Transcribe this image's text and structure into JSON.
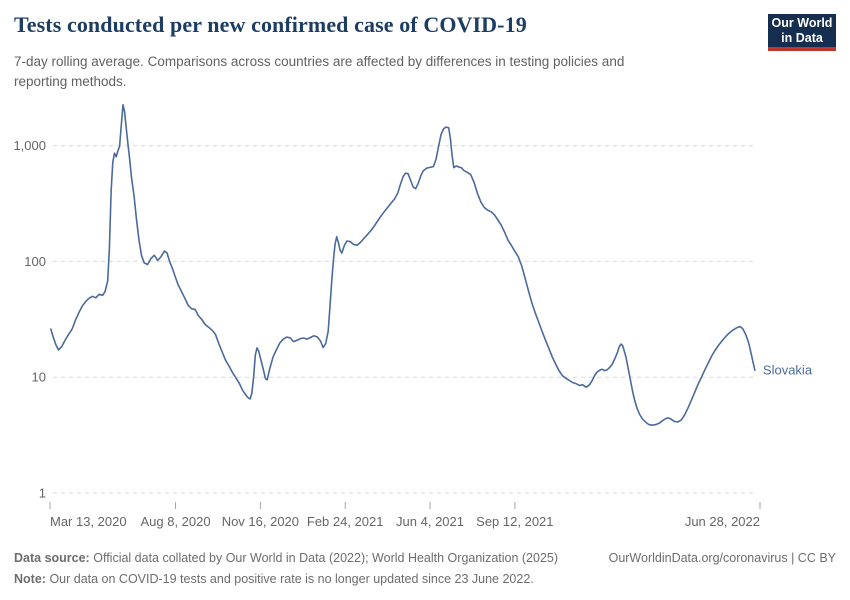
{
  "header": {
    "title": "Tests conducted per new confirmed case of COVID-19",
    "subtitle": "7-day rolling average. Comparisons across countries are affected by differences in testing policies and reporting methods.",
    "logo": {
      "line1": "Our World",
      "line2": "in Data"
    }
  },
  "footer": {
    "datasource_label": "Data source:",
    "datasource_text": "Official data collated by Our World in Data (2022); World Health Organization (2025)",
    "link": "OurWorldinData.org/coronavirus | CC BY",
    "note_label": "Note:",
    "note_text": "Our data on COVID-19 tests and positive rate is no longer updated since 23 June 2022."
  },
  "colors": {
    "title": "#1d3d63",
    "subtitle": "#616161",
    "grid": "#dadada",
    "axis_tick": "#a5a5a5",
    "axis_label": "#666666",
    "series_blue": "#4C6A9C",
    "logo_bg": "#152d4f",
    "logo_stripe": "#c0362c",
    "footer_text": "#6d6d6d"
  },
  "chart_data": {
    "type": "line",
    "title": "Tests conducted per new confirmed case of COVID-19",
    "subtitle": "7-day rolling average. Comparisons across countries are affected by differences in testing policies and reporting methods.",
    "log_scale_y": true,
    "grid": "dashed-horizontal",
    "ylim": [
      1,
      2500
    ],
    "x_range": [
      "2020-03-13",
      "2022-06-28"
    ],
    "y_ticks": [
      {
        "value": 1000,
        "label": "1,000"
      },
      {
        "value": 100,
        "label": "100"
      },
      {
        "value": 10,
        "label": "10"
      },
      {
        "value": 1,
        "label": "1"
      }
    ],
    "x_ticks": [
      {
        "date": "2020-03-13",
        "label": "Mar 13, 2020"
      },
      {
        "date": "2020-08-08",
        "label": "Aug 8, 2020"
      },
      {
        "date": "2020-11-16",
        "label": "Nov 16, 2020"
      },
      {
        "date": "2021-02-24",
        "label": "Feb 24, 2021"
      },
      {
        "date": "2021-06-04",
        "label": "Jun 4, 2021"
      },
      {
        "date": "2021-09-12",
        "label": "Sep 12, 2021"
      },
      {
        "date": "2022-06-28",
        "label": "Jun 28, 2022"
      }
    ],
    "series": [
      {
        "name": "Slovakia",
        "color": "#4C6A9C",
        "points": [
          [
            "2020-03-14",
            26
          ],
          [
            "2020-03-17",
            22
          ],
          [
            "2020-03-20",
            19
          ],
          [
            "2020-03-23",
            17.2
          ],
          [
            "2020-03-27",
            18.5
          ],
          [
            "2020-03-31",
            21
          ],
          [
            "2020-04-04",
            23.5
          ],
          [
            "2020-04-08",
            26
          ],
          [
            "2020-04-12",
            31
          ],
          [
            "2020-04-16",
            36
          ],
          [
            "2020-04-20",
            41
          ],
          [
            "2020-04-24",
            45
          ],
          [
            "2020-04-28",
            48
          ],
          [
            "2020-05-02",
            50
          ],
          [
            "2020-05-06",
            48.5
          ],
          [
            "2020-05-10",
            52
          ],
          [
            "2020-05-14",
            51
          ],
          [
            "2020-05-17",
            55
          ],
          [
            "2020-05-20",
            68
          ],
          [
            "2020-05-22",
            130
          ],
          [
            "2020-05-24",
            400
          ],
          [
            "2020-05-26",
            720
          ],
          [
            "2020-05-28",
            860
          ],
          [
            "2020-05-30",
            800
          ],
          [
            "2020-06-01",
            900
          ],
          [
            "2020-06-03",
            990
          ],
          [
            "2020-06-05",
            1500
          ],
          [
            "2020-06-07",
            2250
          ],
          [
            "2020-06-09",
            1950
          ],
          [
            "2020-06-11",
            1400
          ],
          [
            "2020-06-13",
            1020
          ],
          [
            "2020-06-15",
            760
          ],
          [
            "2020-06-17",
            540
          ],
          [
            "2020-06-20",
            370
          ],
          [
            "2020-06-23",
            230
          ],
          [
            "2020-06-26",
            150
          ],
          [
            "2020-06-29",
            112
          ],
          [
            "2020-07-02",
            97
          ],
          [
            "2020-07-06",
            94
          ],
          [
            "2020-07-10",
            106
          ],
          [
            "2020-07-14",
            113
          ],
          [
            "2020-07-18",
            102
          ],
          [
            "2020-07-22",
            110
          ],
          [
            "2020-07-26",
            123
          ],
          [
            "2020-07-29",
            118
          ],
          [
            "2020-08-01",
            100
          ],
          [
            "2020-08-04",
            88
          ],
          [
            "2020-08-07",
            76
          ],
          [
            "2020-08-11",
            63
          ],
          [
            "2020-08-15",
            55
          ],
          [
            "2020-08-19",
            48
          ],
          [
            "2020-08-23",
            41.5
          ],
          [
            "2020-08-27",
            39
          ],
          [
            "2020-08-31",
            38.5
          ],
          [
            "2020-09-04",
            34
          ],
          [
            "2020-09-08",
            31.5
          ],
          [
            "2020-09-12",
            28.5
          ],
          [
            "2020-09-16",
            27
          ],
          [
            "2020-09-20",
            25.5
          ],
          [
            "2020-09-24",
            23.5
          ],
          [
            "2020-09-28",
            19.5
          ],
          [
            "2020-10-02",
            16.5
          ],
          [
            "2020-10-06",
            14
          ],
          [
            "2020-10-10",
            12.5
          ],
          [
            "2020-10-14",
            11
          ],
          [
            "2020-10-18",
            9.9
          ],
          [
            "2020-10-22",
            8.9
          ],
          [
            "2020-10-26",
            7.7
          ],
          [
            "2020-10-30",
            7
          ],
          [
            "2020-11-02",
            6.6
          ],
          [
            "2020-11-04",
            6.5
          ],
          [
            "2020-11-06",
            7.3
          ],
          [
            "2020-11-08",
            10
          ],
          [
            "2020-11-10",
            15.5
          ],
          [
            "2020-11-12",
            17.9
          ],
          [
            "2020-11-14",
            16.8
          ],
          [
            "2020-11-17",
            13.8
          ],
          [
            "2020-11-20",
            11.2
          ],
          [
            "2020-11-22",
            9.7
          ],
          [
            "2020-11-24",
            9.5
          ],
          [
            "2020-11-27",
            11.8
          ],
          [
            "2020-12-01",
            15
          ],
          [
            "2020-12-05",
            17.3
          ],
          [
            "2020-12-09",
            19.8
          ],
          [
            "2020-12-13",
            21.3
          ],
          [
            "2020-12-17",
            22.2
          ],
          [
            "2020-12-21",
            21.9
          ],
          [
            "2020-12-25",
            20.3
          ],
          [
            "2020-12-29",
            20.8
          ],
          [
            "2021-01-02",
            21.5
          ],
          [
            "2021-01-06",
            21.8
          ],
          [
            "2021-01-10",
            21.3
          ],
          [
            "2021-01-14",
            22
          ],
          [
            "2021-01-18",
            22.8
          ],
          [
            "2021-01-22",
            22.3
          ],
          [
            "2021-01-26",
            20.5
          ],
          [
            "2021-01-29",
            18
          ],
          [
            "2021-02-01",
            19.5
          ],
          [
            "2021-02-04",
            25
          ],
          [
            "2021-02-06",
            40
          ],
          [
            "2021-02-08",
            65
          ],
          [
            "2021-02-10",
            100
          ],
          [
            "2021-02-12",
            140
          ],
          [
            "2021-02-14",
            163
          ],
          [
            "2021-02-16",
            145
          ],
          [
            "2021-02-18",
            125
          ],
          [
            "2021-02-20",
            118
          ],
          [
            "2021-02-23",
            137
          ],
          [
            "2021-02-26",
            150
          ],
          [
            "2021-03-02",
            148
          ],
          [
            "2021-03-06",
            140
          ],
          [
            "2021-03-10",
            138
          ],
          [
            "2021-03-14",
            146
          ],
          [
            "2021-03-18",
            158
          ],
          [
            "2021-03-22",
            170
          ],
          [
            "2021-03-26",
            183
          ],
          [
            "2021-03-30",
            200
          ],
          [
            "2021-04-03",
            222
          ],
          [
            "2021-04-07",
            245
          ],
          [
            "2021-04-11",
            268
          ],
          [
            "2021-04-15",
            292
          ],
          [
            "2021-04-19",
            318
          ],
          [
            "2021-04-23",
            345
          ],
          [
            "2021-04-27",
            390
          ],
          [
            "2021-04-30",
            460
          ],
          [
            "2021-05-03",
            535
          ],
          [
            "2021-05-06",
            578
          ],
          [
            "2021-05-09",
            572
          ],
          [
            "2021-05-12",
            505
          ],
          [
            "2021-05-15",
            440
          ],
          [
            "2021-05-18",
            424
          ],
          [
            "2021-05-21",
            470
          ],
          [
            "2021-05-24",
            545
          ],
          [
            "2021-05-27",
            605
          ],
          [
            "2021-05-31",
            638
          ],
          [
            "2021-06-04",
            648
          ],
          [
            "2021-06-08",
            658
          ],
          [
            "2021-06-11",
            760
          ],
          [
            "2021-06-14",
            980
          ],
          [
            "2021-06-17",
            1250
          ],
          [
            "2021-06-20",
            1400
          ],
          [
            "2021-06-23",
            1445
          ],
          [
            "2021-06-26",
            1425
          ],
          [
            "2021-06-28",
            1150
          ],
          [
            "2021-06-30",
            820
          ],
          [
            "2021-07-02",
            645
          ],
          [
            "2021-07-05",
            668
          ],
          [
            "2021-07-08",
            652
          ],
          [
            "2021-07-11",
            645
          ],
          [
            "2021-07-14",
            608
          ],
          [
            "2021-07-18",
            588
          ],
          [
            "2021-07-22",
            562
          ],
          [
            "2021-07-26",
            480
          ],
          [
            "2021-07-30",
            385
          ],
          [
            "2021-08-03",
            325
          ],
          [
            "2021-08-07",
            292
          ],
          [
            "2021-08-11",
            277
          ],
          [
            "2021-08-15",
            268
          ],
          [
            "2021-08-19",
            252
          ],
          [
            "2021-08-23",
            228
          ],
          [
            "2021-08-27",
            205
          ],
          [
            "2021-08-31",
            178
          ],
          [
            "2021-09-04",
            152
          ],
          [
            "2021-09-08",
            137
          ],
          [
            "2021-09-12",
            122
          ],
          [
            "2021-09-16",
            110
          ],
          [
            "2021-09-20",
            92
          ],
          [
            "2021-09-24",
            72
          ],
          [
            "2021-09-28",
            56
          ],
          [
            "2021-10-02",
            44
          ],
          [
            "2021-10-06",
            36
          ],
          [
            "2021-10-10",
            30
          ],
          [
            "2021-10-14",
            25
          ],
          [
            "2021-10-18",
            21
          ],
          [
            "2021-10-22",
            17.8
          ],
          [
            "2021-10-26",
            15
          ],
          [
            "2021-10-30",
            13
          ],
          [
            "2021-11-03",
            11.4
          ],
          [
            "2021-11-07",
            10.3
          ],
          [
            "2021-11-11",
            9.8
          ],
          [
            "2021-11-15",
            9.4
          ],
          [
            "2021-11-19",
            9
          ],
          [
            "2021-11-23",
            8.8
          ],
          [
            "2021-11-27",
            8.5
          ],
          [
            "2021-12-01",
            8.6
          ],
          [
            "2021-12-05",
            8.2
          ],
          [
            "2021-12-09",
            8.6
          ],
          [
            "2021-12-12",
            9.3
          ],
          [
            "2021-12-15",
            10.3
          ],
          [
            "2021-12-18",
            11.1
          ],
          [
            "2021-12-21",
            11.5
          ],
          [
            "2021-12-24",
            11.7
          ],
          [
            "2021-12-27",
            11.4
          ],
          [
            "2021-12-30",
            11.6
          ],
          [
            "2022-01-02",
            12.2
          ],
          [
            "2022-01-05",
            13
          ],
          [
            "2022-01-08",
            14.5
          ],
          [
            "2022-01-11",
            16.4
          ],
          [
            "2022-01-13",
            18.3
          ],
          [
            "2022-01-15",
            19.3
          ],
          [
            "2022-01-17",
            18.8
          ],
          [
            "2022-01-19",
            16.8
          ],
          [
            "2022-01-21",
            14.9
          ],
          [
            "2022-01-23",
            12.5
          ],
          [
            "2022-01-25",
            10.5
          ],
          [
            "2022-01-27",
            8.8
          ],
          [
            "2022-01-29",
            7.4
          ],
          [
            "2022-01-31",
            6.4
          ],
          [
            "2022-02-03",
            5.4
          ],
          [
            "2022-02-06",
            4.8
          ],
          [
            "2022-02-09",
            4.4
          ],
          [
            "2022-02-13",
            4.1
          ],
          [
            "2022-02-17",
            3.9
          ],
          [
            "2022-02-21",
            3.85
          ],
          [
            "2022-02-25",
            3.9
          ],
          [
            "2022-03-01",
            4
          ],
          [
            "2022-03-05",
            4.2
          ],
          [
            "2022-03-09",
            4.4
          ],
          [
            "2022-03-12",
            4.45
          ],
          [
            "2022-03-15",
            4.35
          ],
          [
            "2022-03-19",
            4.15
          ],
          [
            "2022-03-23",
            4.1
          ],
          [
            "2022-03-27",
            4.25
          ],
          [
            "2022-03-31",
            4.7
          ],
          [
            "2022-04-04",
            5.4
          ],
          [
            "2022-04-08",
            6.3
          ],
          [
            "2022-04-12",
            7.4
          ],
          [
            "2022-04-16",
            8.7
          ],
          [
            "2022-04-20",
            10
          ],
          [
            "2022-04-24",
            11.6
          ],
          [
            "2022-04-28",
            13.3
          ],
          [
            "2022-05-02",
            15.2
          ],
          [
            "2022-05-06",
            17
          ],
          [
            "2022-05-10",
            18.8
          ],
          [
            "2022-05-14",
            20.5
          ],
          [
            "2022-05-18",
            22.2
          ],
          [
            "2022-05-22",
            23.8
          ],
          [
            "2022-05-26",
            25.2
          ],
          [
            "2022-05-30",
            26.3
          ],
          [
            "2022-06-02",
            27
          ],
          [
            "2022-06-05",
            27.3
          ],
          [
            "2022-06-08",
            26
          ],
          [
            "2022-06-11",
            23.5
          ],
          [
            "2022-06-14",
            20.5
          ],
          [
            "2022-06-16",
            18
          ],
          [
            "2022-06-18",
            15.5
          ],
          [
            "2022-06-20",
            13.3
          ],
          [
            "2022-06-21",
            12.3
          ],
          [
            "2022-06-22",
            11.5
          ]
        ]
      }
    ],
    "entity_label": "Slovakia",
    "legend_position": "end-of-line"
  }
}
